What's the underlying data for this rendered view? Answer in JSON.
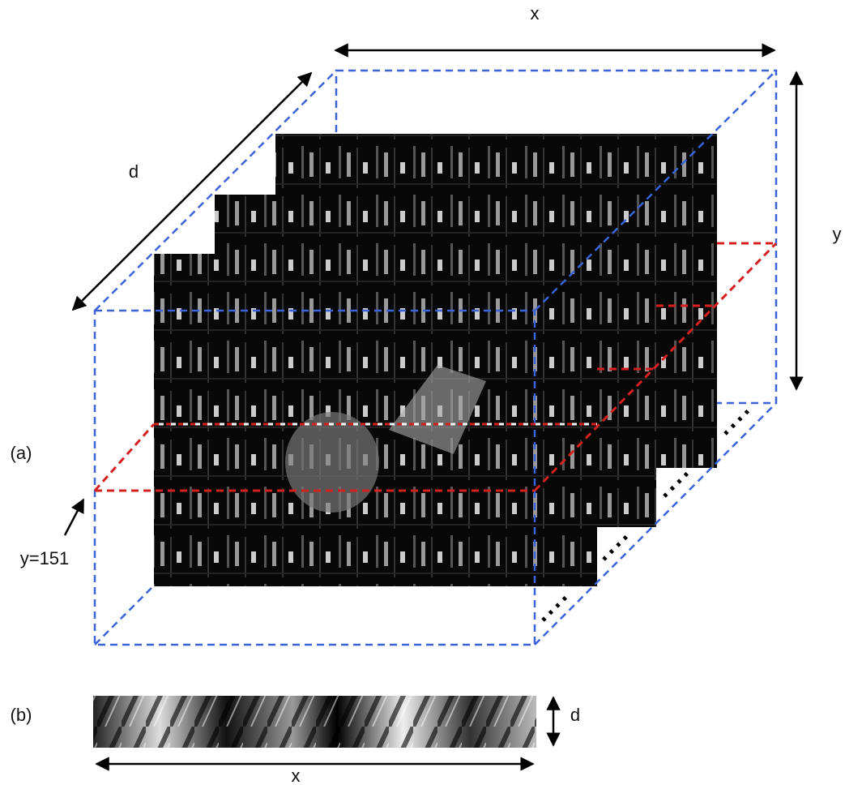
{
  "panel_a": {
    "label": "(a)",
    "axis_x": "x",
    "axis_y": "y",
    "axis_d": "d",
    "slice_label": "y=151"
  },
  "panel_b": {
    "label": "(b)",
    "axis_x": "x",
    "axis_d": "d"
  }
}
